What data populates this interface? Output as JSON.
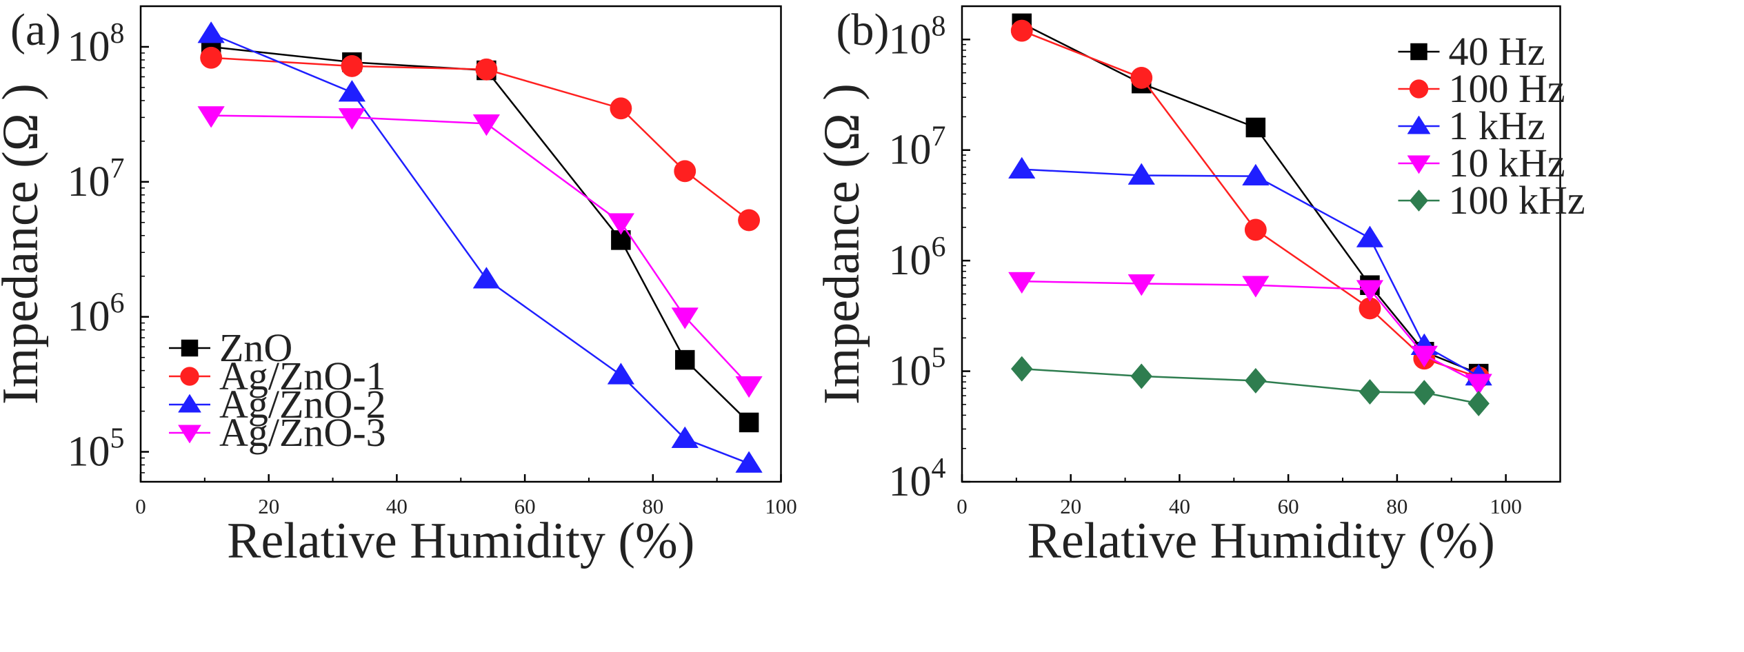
{
  "chart_data": [
    {
      "type": "line",
      "panel_label": "(a)",
      "xlabel": "Relative Humidity (%)",
      "ylabel": "Impedance (Ω )",
      "yscale": "log",
      "xlim": [
        0,
        100
      ],
      "ylim": [
        60000,
        200000000
      ],
      "xticks": [
        0,
        20,
        40,
        60,
        80,
        100
      ],
      "xtick_labels": [
        "0",
        "20",
        "40",
        "60",
        "80",
        "100"
      ],
      "yticks": [
        100000,
        1000000,
        10000000,
        100000000
      ],
      "ytick_labels": [
        {
          "base": "10",
          "exp": "5"
        },
        {
          "base": "10",
          "exp": "6"
        },
        {
          "base": "10",
          "exp": "7"
        },
        {
          "base": "10",
          "exp": "8"
        }
      ],
      "legend_position": "bottom-left",
      "series": [
        {
          "name": "ZnO",
          "color": "#000000",
          "marker": "square",
          "x": [
            11,
            33,
            54,
            75,
            85,
            95
          ],
          "values": [
            100000000,
            77000000,
            67000000,
            3700000,
            480000,
            165000
          ]
        },
        {
          "name": "Ag/ZnO-1",
          "color": "#ff2020",
          "marker": "circle",
          "x": [
            11,
            33,
            54,
            75,
            85,
            95
          ],
          "values": [
            83000000,
            72000000,
            68000000,
            35000000,
            12000000,
            5200000
          ]
        },
        {
          "name": "Ag/ZnO-2",
          "color": "#1f1fff",
          "marker": "triangle-up",
          "x": [
            11,
            33,
            54,
            75,
            85,
            95
          ],
          "values": [
            125000000,
            46000000,
            1900000,
            370000,
            125000,
            82000
          ]
        },
        {
          "name": "Ag/ZnO-3",
          "color": "#ff00ff",
          "marker": "triangle-down",
          "x": [
            11,
            33,
            54,
            75,
            85,
            95
          ],
          "values": [
            31000000,
            30000000,
            27000000,
            5000000,
            1000000,
            310000
          ]
        }
      ]
    },
    {
      "type": "line",
      "panel_label": "(b)",
      "xlabel": "Relative Humidity (%)",
      "ylabel": "Impedance (Ω )",
      "yscale": "log",
      "xlim": [
        0,
        110
      ],
      "ylim": [
        10000,
        200000000
      ],
      "xticks": [
        0,
        20,
        40,
        60,
        80,
        100
      ],
      "xtick_labels": [
        "0",
        "20",
        "40",
        "60",
        "80",
        "100"
      ],
      "yticks": [
        10000,
        100000,
        1000000,
        10000000,
        100000000
      ],
      "ytick_labels": [
        {
          "base": "10",
          "exp": "4"
        },
        {
          "base": "10",
          "exp": "5"
        },
        {
          "base": "10",
          "exp": "6"
        },
        {
          "base": "10",
          "exp": "7"
        },
        {
          "base": "10",
          "exp": "8"
        }
      ],
      "legend_position": "top-right",
      "series": [
        {
          "name": "40 Hz",
          "color": "#000000",
          "marker": "square",
          "x": [
            11,
            33,
            54,
            75,
            85,
            95
          ],
          "values": [
            140000000,
            40000000,
            16000000,
            600000,
            150000,
            95000
          ]
        },
        {
          "name": "100 Hz",
          "color": "#ff2020",
          "marker": "circle",
          "x": [
            11,
            33,
            54,
            75,
            85,
            95
          ],
          "values": [
            120000000,
            45000000,
            1900000,
            370000,
            130000,
            88000
          ]
        },
        {
          "name": "1 kHz",
          "color": "#1f1fff",
          "marker": "triangle-up",
          "x": [
            11,
            33,
            54,
            75,
            85,
            95
          ],
          "values": [
            6700000,
            5900000,
            5800000,
            1600000,
            170000,
            90000
          ]
        },
        {
          "name": "10 kHz",
          "color": "#ff00ff",
          "marker": "triangle-down",
          "x": [
            11,
            33,
            54,
            75,
            85,
            95
          ],
          "values": [
            650000,
            620000,
            600000,
            550000,
            140000,
            78000
          ]
        },
        {
          "name": "100 kHz",
          "color": "#2e7d4f",
          "marker": "diamond",
          "x": [
            11,
            33,
            54,
            75,
            85,
            95
          ],
          "values": [
            105000,
            90000,
            82000,
            65000,
            64000,
            51000
          ]
        }
      ]
    }
  ]
}
